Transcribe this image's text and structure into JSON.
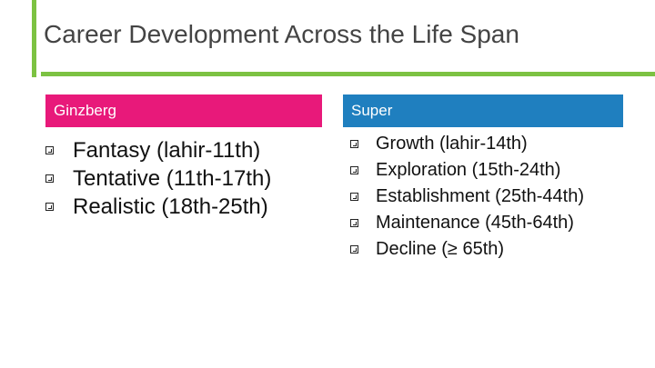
{
  "title": "Career Development Across the Life Span",
  "columns": {
    "ginzberg": {
      "header": "Ginzberg",
      "items": [
        "Fantasy (lahir-11th)",
        "Tentative (11th-17th)",
        "Realistic (18th-25th)"
      ]
    },
    "super": {
      "header": "Super",
      "items": [
        "Growth (lahir-14th)",
        "Exploration (15th-24th)",
        "Establishment (25th-44th)",
        "Maintenance (45th-64th)",
        "Decline (≥ 65th)"
      ]
    }
  },
  "colors": {
    "accent_green": "#7cc242",
    "ginzberg_header": "#e8197a",
    "super_header": "#1f7fbf"
  },
  "icons": {
    "bullet": "checkbox-bullet-icon"
  }
}
